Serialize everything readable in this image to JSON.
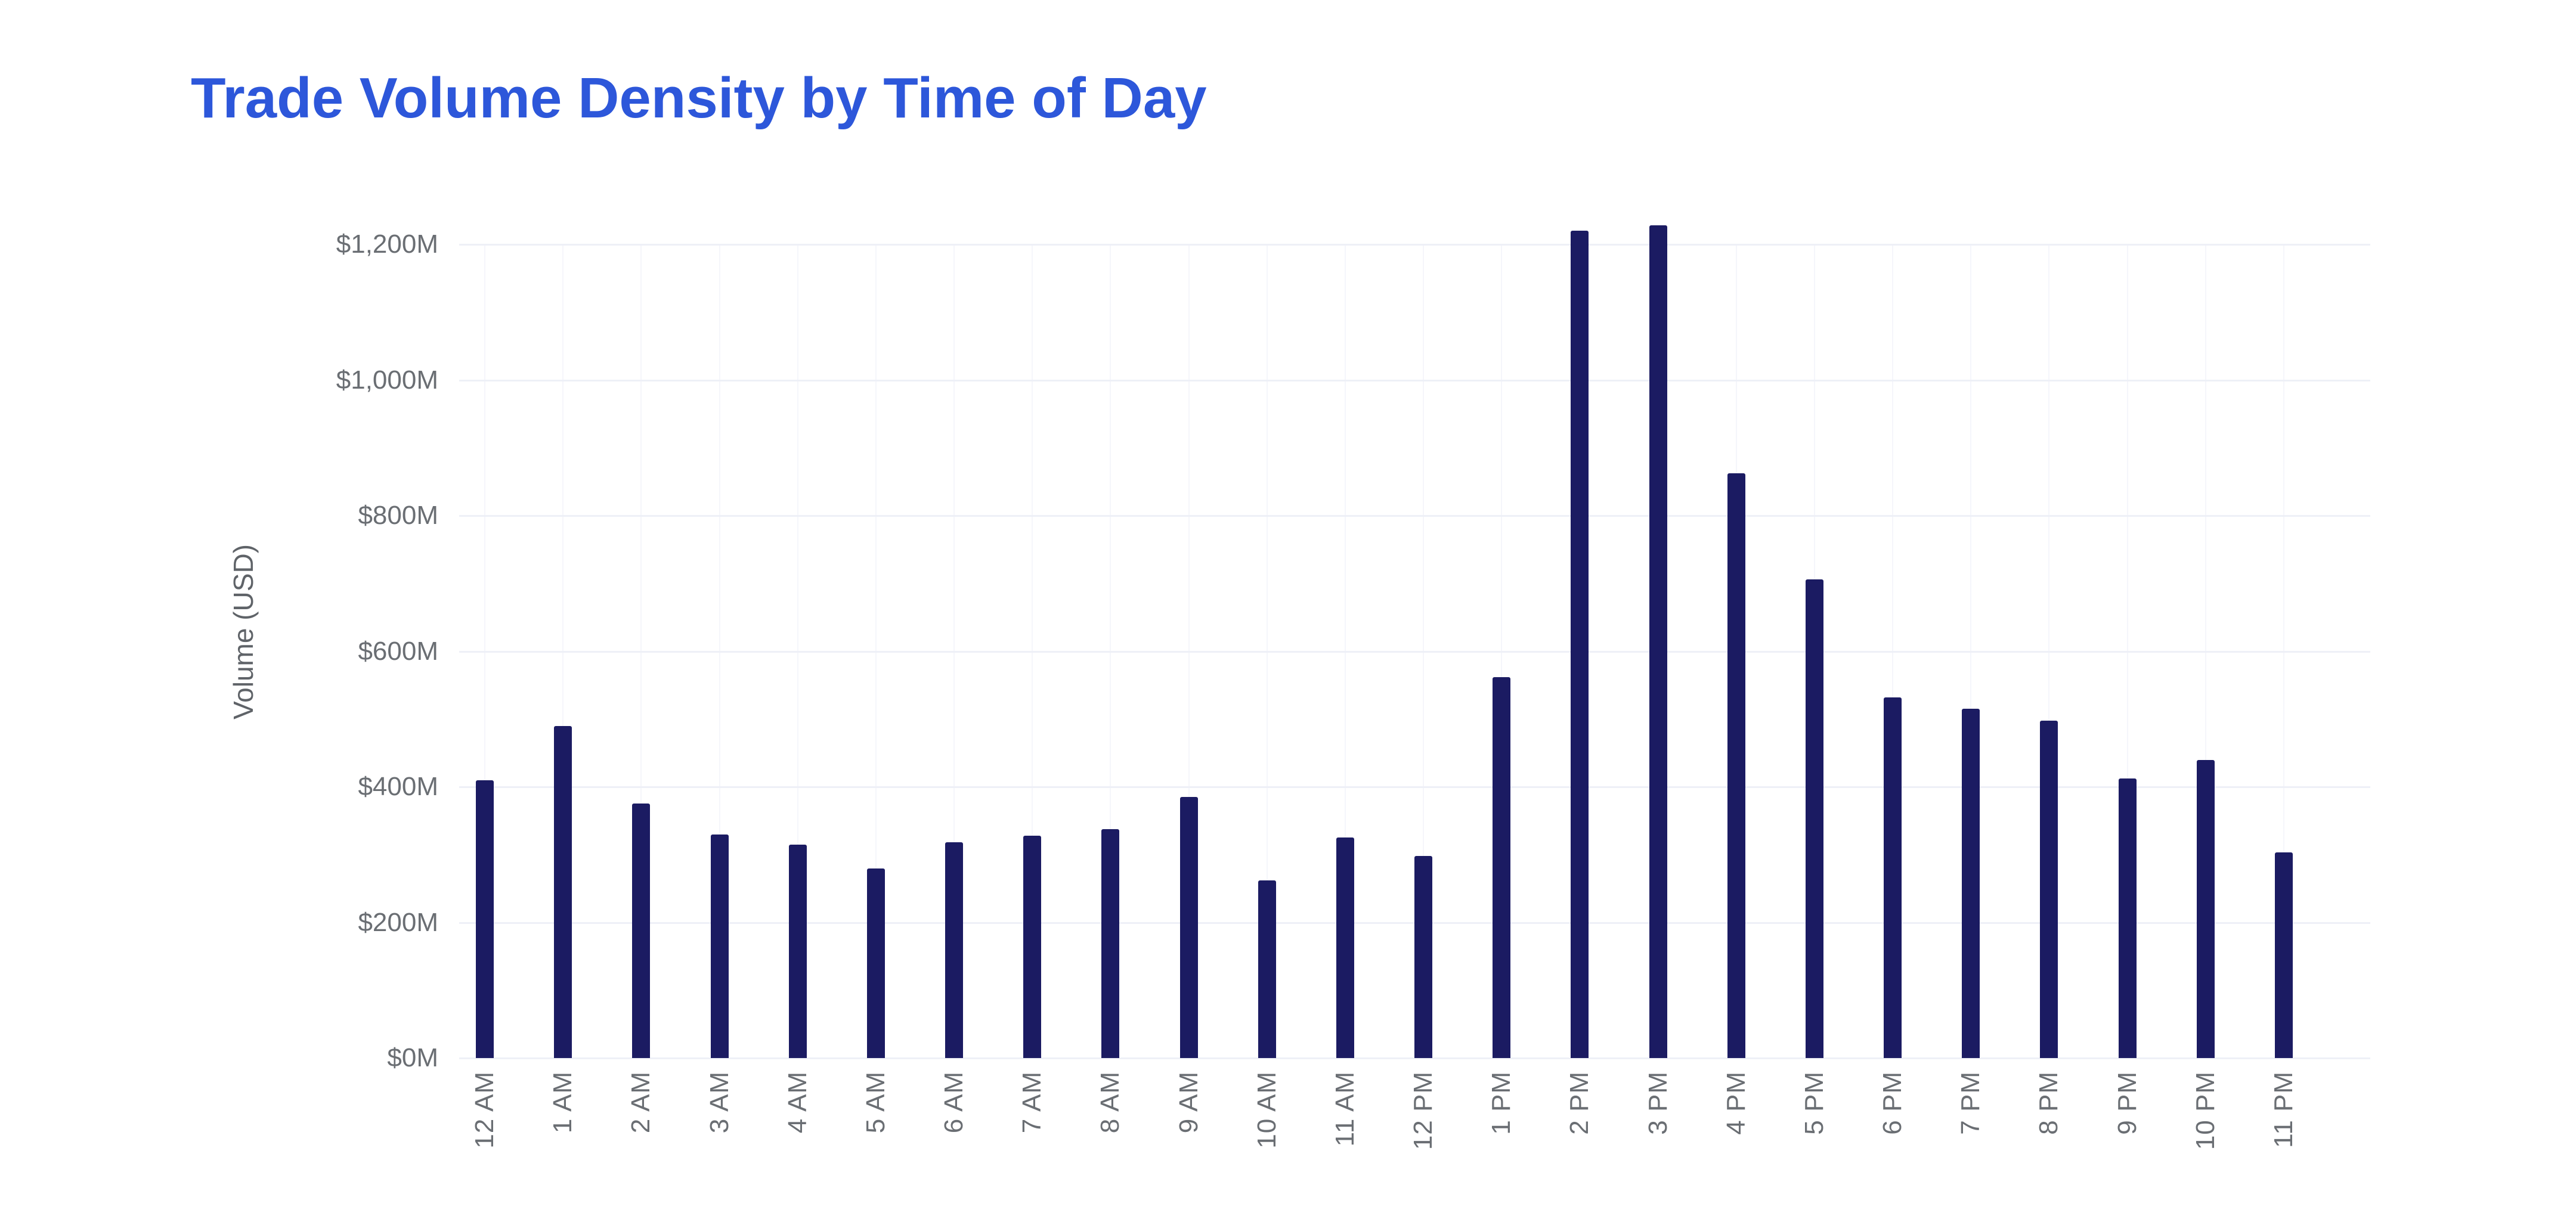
{
  "page": {
    "background": "#ffffff"
  },
  "chart_data": {
    "type": "bar",
    "title": "Trade Volume Density by Time of Day",
    "title_color": "#2d57da",
    "bar_color": "#1b1b62",
    "xlabel": "",
    "ylabel": "Volume (USD)",
    "categories": [
      "12 AM",
      "1 AM",
      "2 AM",
      "3 AM",
      "4 AM",
      "5 AM",
      "6 AM",
      "7 AM",
      "8 AM",
      "9 AM",
      "10 AM",
      "11 AM",
      "12 PM",
      "1 PM",
      "2 PM",
      "3 PM",
      "4 PM",
      "5 PM",
      "6 PM",
      "7 PM",
      "8 PM",
      "9 PM",
      "10 PM",
      "11 PM"
    ],
    "values": [
      410,
      490,
      375,
      330,
      315,
      280,
      318,
      328,
      338,
      385,
      262,
      325,
      298,
      562,
      1220,
      1228,
      862,
      706,
      532,
      515,
      498,
      412,
      440,
      303
    ],
    "value_unit": "USD millions",
    "y_ticks": [
      {
        "value": 0,
        "label": "$0M"
      },
      {
        "value": 200,
        "label": "$200M"
      },
      {
        "value": 400,
        "label": "$400M"
      },
      {
        "value": 600,
        "label": "$600M"
      },
      {
        "value": 800,
        "label": "$800M"
      },
      {
        "value": 1000,
        "label": "$1,000M"
      },
      {
        "value": 1200,
        "label": "$1,200M"
      }
    ],
    "ylim": [
      0,
      1230
    ],
    "grid": {
      "horizontal": true,
      "vertical": "very-faint"
    },
    "legend_position": "none"
  }
}
